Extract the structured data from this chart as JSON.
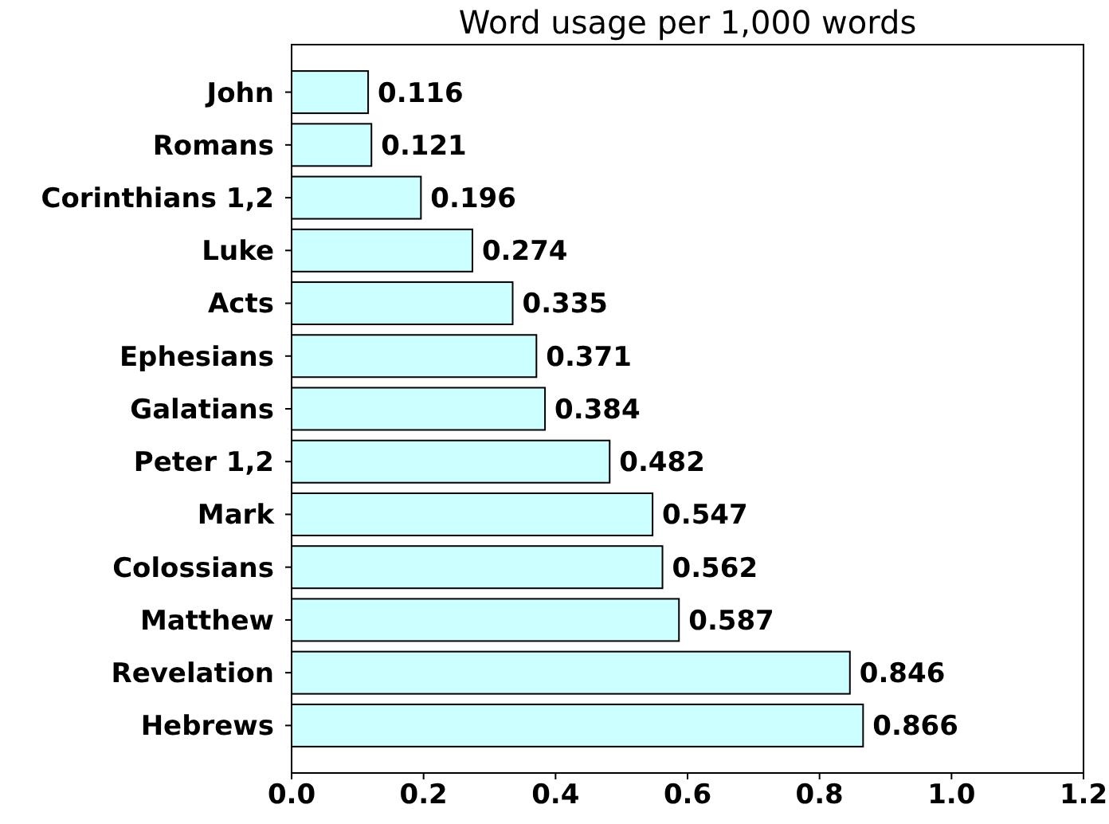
{
  "chart_data": {
    "type": "bar",
    "orientation": "horizontal",
    "title": "Word usage per 1,000 words",
    "categories": [
      "John",
      "Romans",
      "Corinthians 1,2",
      "Luke",
      "Acts",
      "Ephesians",
      "Galatians",
      "Peter 1,2",
      "Mark",
      "Colossians",
      "Matthew",
      "Revelation",
      "Hebrews"
    ],
    "values": [
      0.116,
      0.121,
      0.196,
      0.274,
      0.335,
      0.371,
      0.384,
      0.482,
      0.547,
      0.562,
      0.587,
      0.846,
      0.866
    ],
    "color": "#ccffff",
    "xlim": [
      0,
      1.2
    ],
    "xticks": [
      {
        "value": 0,
        "label": "0.0"
      },
      {
        "value": 0.2,
        "label": "0.2"
      },
      {
        "value": 0.4,
        "label": "0.4"
      },
      {
        "value": 0.6,
        "label": "0.6"
      },
      {
        "value": 0.8,
        "label": "0.8"
      },
      {
        "value": 1,
        "label": "1.0"
      },
      {
        "value": 1.2,
        "label": "1.2"
      }
    ],
    "data_labels": true,
    "grid": false
  }
}
